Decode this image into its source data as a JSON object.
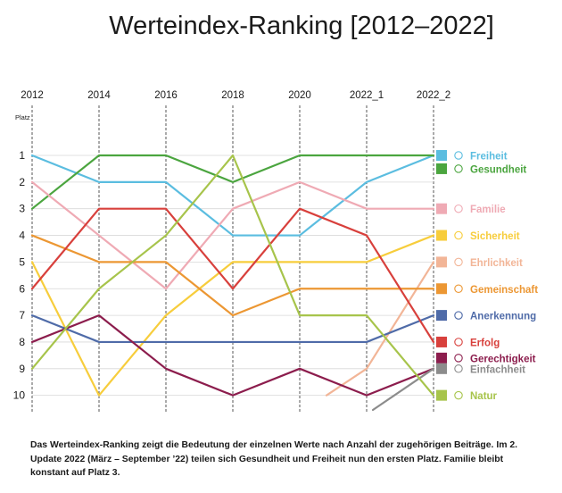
{
  "chart_data": {
    "type": "line",
    "title": "Werteindex-Ranking [2012–2022]",
    "ylabel": "Platz",
    "categories": [
      "2012",
      "2014",
      "2016",
      "2018",
      "2020",
      "2022_1",
      "2022_2"
    ],
    "y_ticks": [
      "1",
      "2",
      "3",
      "4",
      "5",
      "6",
      "7",
      "8",
      "9",
      "10"
    ],
    "ylim": [
      1,
      10
    ],
    "y_inverted": true,
    "grid": "vertical dashed lines + horizontal gridlines per rank",
    "legend_position": "right",
    "series": [
      {
        "name": "Freiheit",
        "color": "#5bbde0",
        "icon": "flag-icon",
        "values": [
          1,
          2,
          2,
          4,
          4,
          2,
          1
        ]
      },
      {
        "name": "Gesundheit",
        "color": "#4ba53f",
        "icon": "heart-pulse-icon",
        "values": [
          3,
          1,
          1,
          2,
          1,
          1,
          1
        ]
      },
      {
        "name": "Familie",
        "color": "#efaab4",
        "icon": "family-icon",
        "values": [
          2,
          4,
          6,
          3,
          2,
          3,
          3
        ]
      },
      {
        "name": "Sicherheit",
        "color": "#f7cd3c",
        "icon": "lock-icon",
        "values": [
          5,
          10,
          7,
          5,
          5,
          5,
          4
        ]
      },
      {
        "name": "Ehrlichkeit",
        "color": "#f2b597",
        "icon": "document-icon",
        "values": [
          null,
          null,
          null,
          null,
          10,
          9,
          5
        ]
      },
      {
        "name": "Gemeinschaft",
        "color": "#ec9733",
        "icon": "group-icon",
        "values": [
          4,
          5,
          5,
          7,
          6,
          6,
          6
        ]
      },
      {
        "name": "Anerkennung",
        "color": "#4f6ba8",
        "icon": "thumbs-up-icon",
        "values": [
          7,
          8,
          8,
          8,
          8,
          8,
          7
        ]
      },
      {
        "name": "Erfolg",
        "color": "#d8403c",
        "icon": "trophy-icon",
        "values": [
          6,
          3,
          3,
          6,
          3,
          4,
          8
        ]
      },
      {
        "name": "Gerechtigkeit",
        "color": "#8c1d4d",
        "icon": "scales-icon",
        "values": [
          8,
          7,
          9,
          10,
          9,
          10,
          9
        ]
      },
      {
        "name": "Einfachheit",
        "color": "#8c8c8c",
        "icon": "wave-icon",
        "values": [
          null,
          null,
          null,
          null,
          null,
          10.6,
          9
        ]
      },
      {
        "name": "Natur",
        "color": "#a7c44b",
        "icon": "plant-icon",
        "values": [
          9,
          6,
          4,
          1,
          7,
          7,
          10
        ]
      }
    ],
    "legend_ranks": [
      1,
      1.5,
      3,
      4,
      5,
      6,
      7,
      8,
      8.6,
      9,
      10
    ]
  },
  "caption": "Das Werteindex-Ranking zeigt die Bedeutung der einzelnen Werte nach Anzahl der zugehörigen Beiträge. Im 2. Update 2022 (März – September ’22) teilen sich Gesundheit und Freiheit nun den ersten Platz. Familie bleibt konstant auf Platz 3."
}
